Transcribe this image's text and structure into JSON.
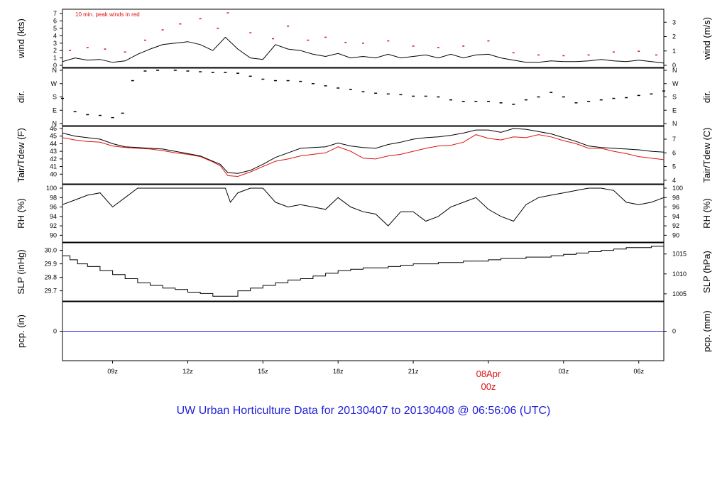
{
  "chart_data": {
    "type": "line",
    "title": "UW Urban Horticulture Data for 20130407  to  20130408 @ 06:56:06  (UTC)",
    "title_color": "#1f1fd9",
    "x_axis": {
      "ticks": [
        "09z",
        "12z",
        "15z",
        "18z",
        "21z",
        "",
        "03z",
        "06z"
      ],
      "special_tick": {
        "line1": "08Apr",
        "line2": "00z",
        "color": "#dd1111"
      },
      "start_hour_utc": 7.0,
      "end_hour_utc": 31.0
    },
    "panels": [
      {
        "id": "wind",
        "ylabel_left": "wind (kts)",
        "ylabel_right": "wind (m/s)",
        "ylim": [
          0,
          7.3
        ],
        "left_ticks": [
          "0",
          "1",
          "2",
          "3",
          "4",
          "5",
          "6",
          "7"
        ],
        "right_ticks": [
          "0",
          "1",
          "2",
          "3"
        ],
        "annotation": "10 min. peak winds in red",
        "annotation_color": "#dd1111",
        "series": [
          {
            "name": "",
            "color": "#000000",
            "x": [
              7.0,
              7.5,
              8.0,
              8.5,
              9.0,
              9.5,
              10.0,
              10.5,
              11.0,
              11.5,
              12.0,
              12.5,
              13.0,
              13.5,
              14.0,
              14.5,
              15.0,
              15.5,
              16.0,
              16.5,
              17.0,
              17.5,
              18.0,
              18.5,
              19.0,
              19.5,
              20.0,
              20.5,
              21.0,
              21.5,
              22.0,
              22.5,
              23.0,
              23.5,
              24.0,
              24.5,
              25.0,
              25.5,
              26.0,
              26.5,
              27.0,
              27.5,
              28.0,
              28.5,
              29.0,
              29.5,
              30.0,
              30.5,
              31.0
            ],
            "values": [
              0.5,
              1.0,
              0.7,
              0.8,
              0.4,
              0.6,
              1.5,
              2.2,
              2.8,
              3.0,
              3.2,
              2.8,
              2.0,
              3.8,
              2.2,
              1.0,
              0.8,
              2.8,
              2.2,
              2.0,
              1.5,
              1.2,
              1.6,
              1.0,
              1.2,
              1.0,
              1.5,
              1.0,
              1.2,
              1.4,
              1.0,
              1.5,
              1.0,
              1.4,
              1.5,
              1.0,
              0.7,
              0.4,
              0.4,
              0.6,
              0.5,
              0.5,
              0.6,
              0.8,
              0.6,
              0.5,
              0.7,
              0.5,
              0.3
            ]
          },
          {
            "name": "10 min. peak winds",
            "color": "#dd1111",
            "x": [
              7.3,
              8.0,
              8.7,
              9.5,
              10.3,
              11.0,
              11.7,
              12.5,
              13.2,
              13.6,
              14.5,
              15.4,
              16.0,
              16.8,
              17.5,
              18.3,
              19.0,
              20.0,
              21.0,
              22.0,
              23.0,
              24.0,
              25.0,
              26.0,
              27.0,
              28.0,
              29.0,
              30.0,
              30.7
            ],
            "values": [
              2.0,
              2.4,
              2.2,
              1.8,
              3.4,
              4.8,
              5.6,
              6.3,
              5.0,
              7.1,
              4.4,
              3.6,
              5.3,
              3.4,
              3.8,
              3.1,
              3.0,
              3.3,
              2.6,
              2.4,
              2.6,
              3.3,
              1.7,
              1.4,
              1.3,
              1.4,
              1.8,
              1.9,
              1.4
            ]
          }
        ]
      },
      {
        "id": "dir",
        "ylabel_left": "dir.",
        "ylabel_right": "dir.",
        "ylim": [
          0,
          360
        ],
        "left_ticks": [
          "N",
          "E",
          "S",
          "W",
          "N"
        ],
        "right_ticks": [
          "N",
          "E",
          "S",
          "W",
          "N"
        ],
        "series": [
          {
            "name": "",
            "color": "#000000",
            "x": [
              7.0,
              7.5,
              8.0,
              8.5,
              9.0,
              9.4,
              9.8,
              10.3,
              10.8,
              11.5,
              12.0,
              12.5,
              13.0,
              13.5,
              14.0,
              14.5,
              15.0,
              15.5,
              16.0,
              16.5,
              17.0,
              17.5,
              18.0,
              18.5,
              19.0,
              19.5,
              20.0,
              20.5,
              21.0,
              21.5,
              22.0,
              22.5,
              23.0,
              23.5,
              24.0,
              24.5,
              25.0,
              25.5,
              26.0,
              26.5,
              27.0,
              27.5,
              28.0,
              28.5,
              29.0,
              29.5,
              30.0,
              30.5,
              31.0
            ],
            "values": [
              170,
              80,
              60,
              55,
              40,
              70,
              290,
              355,
              360,
              360,
              355,
              350,
              345,
              345,
              340,
              320,
              300,
              290,
              290,
              285,
              270,
              255,
              240,
              230,
              215,
              205,
              200,
              195,
              185,
              185,
              180,
              160,
              150,
              150,
              150,
              140,
              130,
              160,
              180,
              210,
              180,
              140,
              150,
              160,
              170,
              175,
              190,
              200,
              220
            ]
          }
        ]
      },
      {
        "id": "temp",
        "ylabel_left": "Tair/Tdew (F)",
        "ylabel_right": "Tair/Tdew (C)",
        "ylim": [
          39,
          46
        ],
        "left_ticks": [
          "40",
          "41",
          "42",
          "43",
          "44",
          "45",
          "46"
        ],
        "right_ticks": [
          "4",
          "5",
          "6",
          "7"
        ],
        "series": [
          {
            "name": "",
            "color": "#000000",
            "x": [
              7.0,
              7.5,
              8.0,
              8.5,
              9.0,
              9.5,
              10.0,
              10.5,
              11.0,
              11.5,
              12.0,
              12.5,
              13.0,
              13.3,
              13.6,
              14.0,
              14.5,
              15.0,
              15.5,
              16.0,
              16.5,
              17.0,
              17.5,
              18.0,
              18.5,
              19.0,
              19.5,
              20.0,
              20.5,
              21.0,
              21.5,
              22.0,
              22.5,
              23.0,
              23.5,
              24.0,
              24.5,
              25.0,
              25.5,
              26.0,
              26.5,
              27.0,
              27.5,
              28.0,
              28.5,
              29.0,
              29.5,
              30.0,
              30.5,
              31.0
            ],
            "values": [
              45.4,
              45.0,
              44.8,
              44.6,
              44.0,
              43.6,
              43.5,
              43.4,
              43.3,
              43.0,
              42.7,
              42.4,
              41.7,
              41.3,
              40.2,
              40.1,
              40.5,
              41.3,
              42.2,
              42.8,
              43.4,
              43.5,
              43.6,
              44.1,
              43.7,
              43.5,
              43.4,
              43.9,
              44.2,
              44.6,
              44.8,
              44.9,
              45.1,
              45.4,
              45.8,
              45.8,
              45.5,
              46.0,
              45.9,
              45.6,
              45.3,
              44.8,
              44.3,
              43.7,
              43.5,
              43.4,
              43.3,
              43.2,
              43.0,
              42.9
            ]
          },
          {
            "name": "",
            "color": "#dd1111",
            "x": [
              7.0,
              7.5,
              8.0,
              8.5,
              9.0,
              9.5,
              10.0,
              10.5,
              11.0,
              11.5,
              12.0,
              12.5,
              13.0,
              13.3,
              13.6,
              14.0,
              14.5,
              15.0,
              15.5,
              16.0,
              16.5,
              17.0,
              17.5,
              18.0,
              18.5,
              19.0,
              19.5,
              20.0,
              20.5,
              21.0,
              21.5,
              22.0,
              22.5,
              23.0,
              23.5,
              24.0,
              24.5,
              25.0,
              25.5,
              26.0,
              26.5,
              27.0,
              27.5,
              28.0,
              28.5,
              29.0,
              29.5,
              30.0,
              30.5,
              31.0
            ],
            "values": [
              44.8,
              44.5,
              44.3,
              44.2,
              43.7,
              43.5,
              43.4,
              43.3,
              43.1,
              42.8,
              42.6,
              42.3,
              41.6,
              41.1,
              39.8,
              39.7,
              40.3,
              41.0,
              41.7,
              42.0,
              42.4,
              42.6,
              42.8,
              43.6,
              43.0,
              42.1,
              42.0,
              42.4,
              42.6,
              43.0,
              43.4,
              43.7,
              43.8,
              44.2,
              45.2,
              44.7,
              44.5,
              44.9,
              44.8,
              45.2,
              44.9,
              44.4,
              44.0,
              43.4,
              43.4,
              43.0,
              42.7,
              42.3,
              42.1,
              41.9
            ]
          }
        ]
      },
      {
        "id": "rh",
        "ylabel_left": "RH (%)",
        "ylabel_right": "RH (%)",
        "ylim": [
          89,
          100.3
        ],
        "left_ticks": [
          "90",
          "92",
          "94",
          "96",
          "98",
          "100"
        ],
        "right_ticks": [
          "90",
          "92",
          "94",
          "96",
          "98",
          "100"
        ],
        "series": [
          {
            "name": "",
            "color": "#000000",
            "x": [
              7.0,
              7.5,
              8.0,
              8.5,
              9.0,
              9.5,
              10.0,
              10.5,
              11.0,
              11.5,
              12.0,
              12.5,
              13.0,
              13.5,
              13.7,
              14.0,
              14.5,
              15.0,
              15.5,
              16.0,
              16.5,
              17.0,
              17.5,
              18.0,
              18.5,
              19.0,
              19.5,
              20.0,
              20.5,
              21.0,
              21.5,
              22.0,
              22.5,
              23.0,
              23.5,
              24.0,
              24.5,
              25.0,
              25.5,
              26.0,
              26.5,
              27.0,
              27.5,
              28.0,
              28.5,
              29.0,
              29.5,
              30.0,
              30.5,
              31.0
            ],
            "values": [
              96.5,
              97.5,
              98.5,
              99.0,
              96.0,
              98.0,
              100,
              100,
              100,
              100,
              100,
              100,
              100,
              100,
              97.0,
              99.0,
              100,
              100,
              97.0,
              96.0,
              96.5,
              96.0,
              95.5,
              98.0,
              96.0,
              95.0,
              94.5,
              92.0,
              95.0,
              95.0,
              93.0,
              94.0,
              96.0,
              97.0,
              98.0,
              95.5,
              94.0,
              93.0,
              96.5,
              98.0,
              98.5,
              99.0,
              99.5,
              100,
              100,
              99.5,
              97.0,
              96.5,
              97.0,
              98.0
            ]
          }
        ]
      },
      {
        "id": "slp",
        "ylabel_left": "SLP (inHg)",
        "ylabel_right": "SLP (hPa)",
        "ylim": [
          29.64,
          30.04
        ],
        "left_ticks": [
          "29.7",
          "29.8",
          "29.9",
          "30.0"
        ],
        "right_ticks": [
          "1005",
          "1010",
          "1015"
        ],
        "series": [
          {
            "name": "",
            "color": "#000000",
            "x": [
              7.0,
              7.3,
              7.6,
              8.0,
              8.5,
              9.0,
              9.5,
              10.0,
              10.5,
              11.0,
              11.5,
              12.0,
              12.5,
              13.0,
              13.5,
              14.0,
              14.5,
              15.0,
              15.5,
              16.0,
              16.5,
              17.0,
              17.5,
              18.0,
              18.5,
              19.0,
              19.5,
              20.0,
              20.5,
              21.0,
              21.5,
              22.0,
              22.5,
              23.0,
              23.5,
              24.0,
              24.5,
              25.0,
              25.5,
              26.0,
              26.5,
              27.0,
              27.5,
              28.0,
              28.5,
              29.0,
              29.5,
              30.0,
              30.5,
              31.0
            ],
            "values": [
              29.96,
              29.93,
              29.9,
              29.88,
              29.85,
              29.82,
              29.79,
              29.76,
              29.74,
              29.72,
              29.71,
              29.69,
              29.68,
              29.66,
              29.66,
              29.7,
              29.72,
              29.74,
              29.76,
              29.78,
              29.79,
              29.81,
              29.83,
              29.85,
              29.86,
              29.87,
              29.87,
              29.88,
              29.89,
              29.9,
              29.9,
              29.91,
              29.91,
              29.92,
              29.92,
              29.93,
              29.94,
              29.94,
              29.95,
              29.95,
              29.96,
              29.97,
              29.98,
              29.99,
              30.0,
              30.01,
              30.02,
              30.02,
              30.03,
              30.03
            ]
          }
        ]
      },
      {
        "id": "pcp",
        "ylabel_left": "pcp. (in)",
        "ylabel_right": "pcp. (mm)",
        "ylim": [
          -1,
          1
        ],
        "left_ticks": [
          "0"
        ],
        "right_ticks": [
          "0"
        ],
        "series": [
          {
            "name": "",
            "color": "#2020cc",
            "x": [
              7.0,
              31.0
            ],
            "values": [
              0,
              0
            ]
          }
        ]
      }
    ]
  }
}
